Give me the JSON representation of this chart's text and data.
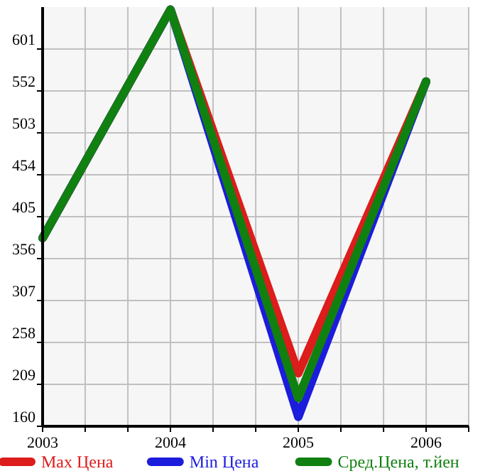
{
  "chart_data": {
    "type": "line",
    "x": [
      2003,
      2004,
      2005,
      2006
    ],
    "series": [
      {
        "name": "Max Цена",
        "color": "#dd1c1c",
        "values": [
          380,
          647,
          222,
          563
        ]
      },
      {
        "name": "Min Цена",
        "color": "#1c1cdd",
        "values": [
          380,
          647,
          171,
          563
        ]
      },
      {
        "name": "Сред.Цена, т.йен",
        "color": "#108010",
        "values": [
          380,
          647,
          193,
          563
        ]
      }
    ],
    "xlim": [
      2003,
      2006.333
    ],
    "xticks": [
      2003,
      {
        "value": 2003.333,
        "label": null
      },
      {
        "value": 2003.667,
        "label": null
      },
      2004,
      {
        "value": 2004.333,
        "label": null
      },
      {
        "value": 2004.667,
        "label": null
      },
      2005,
      {
        "value": 2005.333,
        "label": null
      },
      {
        "value": 2005.667,
        "label": null
      },
      2006,
      {
        "value": 2006.333,
        "label": null
      }
    ],
    "ylim": [
      160,
      650
    ],
    "yticks": [
      160,
      209,
      258,
      307,
      356,
      405,
      454,
      503,
      552,
      601
    ],
    "grid": true,
    "legend": "bottom",
    "marker": "none",
    "line_style": "solid"
  }
}
